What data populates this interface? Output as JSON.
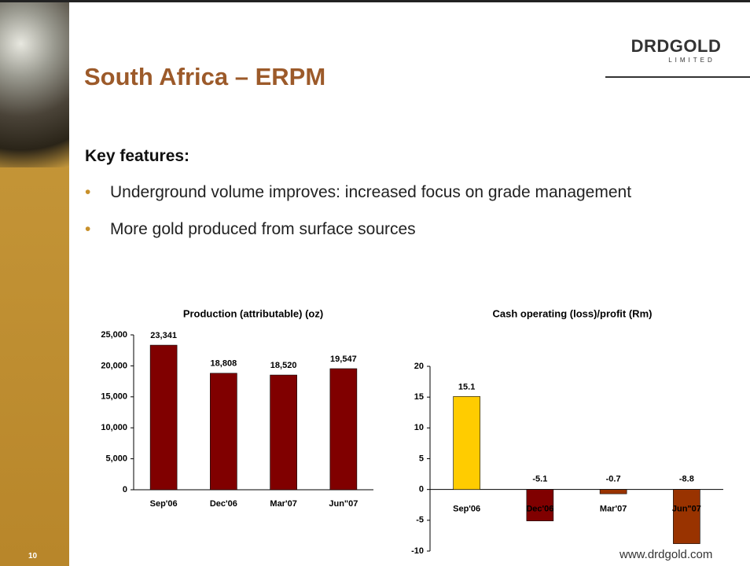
{
  "title": "South Africa – ERPM",
  "logo": {
    "name": "DRDGOLD",
    "sub": "LIMITED"
  },
  "heading": "Key features:",
  "bullets": [
    "Underground volume improves: increased focus on grade management",
    "More gold produced from surface sources"
  ],
  "page_number": "10",
  "website": "www.drdgold.com",
  "chart_data": [
    {
      "type": "bar",
      "title": "Production (attributable) (oz)",
      "categories": [
        "Sep'06",
        "Dec'06",
        "Mar'07",
        "Jun\"07"
      ],
      "values": [
        23341,
        18808,
        18520,
        19547
      ],
      "value_labels": [
        "23,341",
        "18,808",
        "18,520",
        "19,547"
      ],
      "color": "#800000",
      "ylim": [
        0,
        25000
      ],
      "yticks": [
        0,
        {
          "value": 5000,
          "label": "5,000"
        },
        {
          "value": 10000,
          "label": "10,000"
        },
        {
          "value": 15000,
          "label": "15,000"
        },
        {
          "value": 20000,
          "label": "20,000"
        },
        {
          "value": 25000,
          "label": "25,000"
        }
      ]
    },
    {
      "type": "bar",
      "title": "Cash operating (loss)/profit (Rm)",
      "categories": [
        "Sep'06",
        "Dec'06",
        "Mar'07",
        "Jun\"07"
      ],
      "values": [
        15.1,
        -5.1,
        -0.7,
        -8.8
      ],
      "colors": [
        "#ffcc00",
        "#800000",
        "#993300",
        "#993300"
      ],
      "ylim": [
        -10,
        20
      ],
      "yticks": [
        -10,
        -5,
        0,
        5,
        10,
        15,
        20
      ]
    }
  ]
}
